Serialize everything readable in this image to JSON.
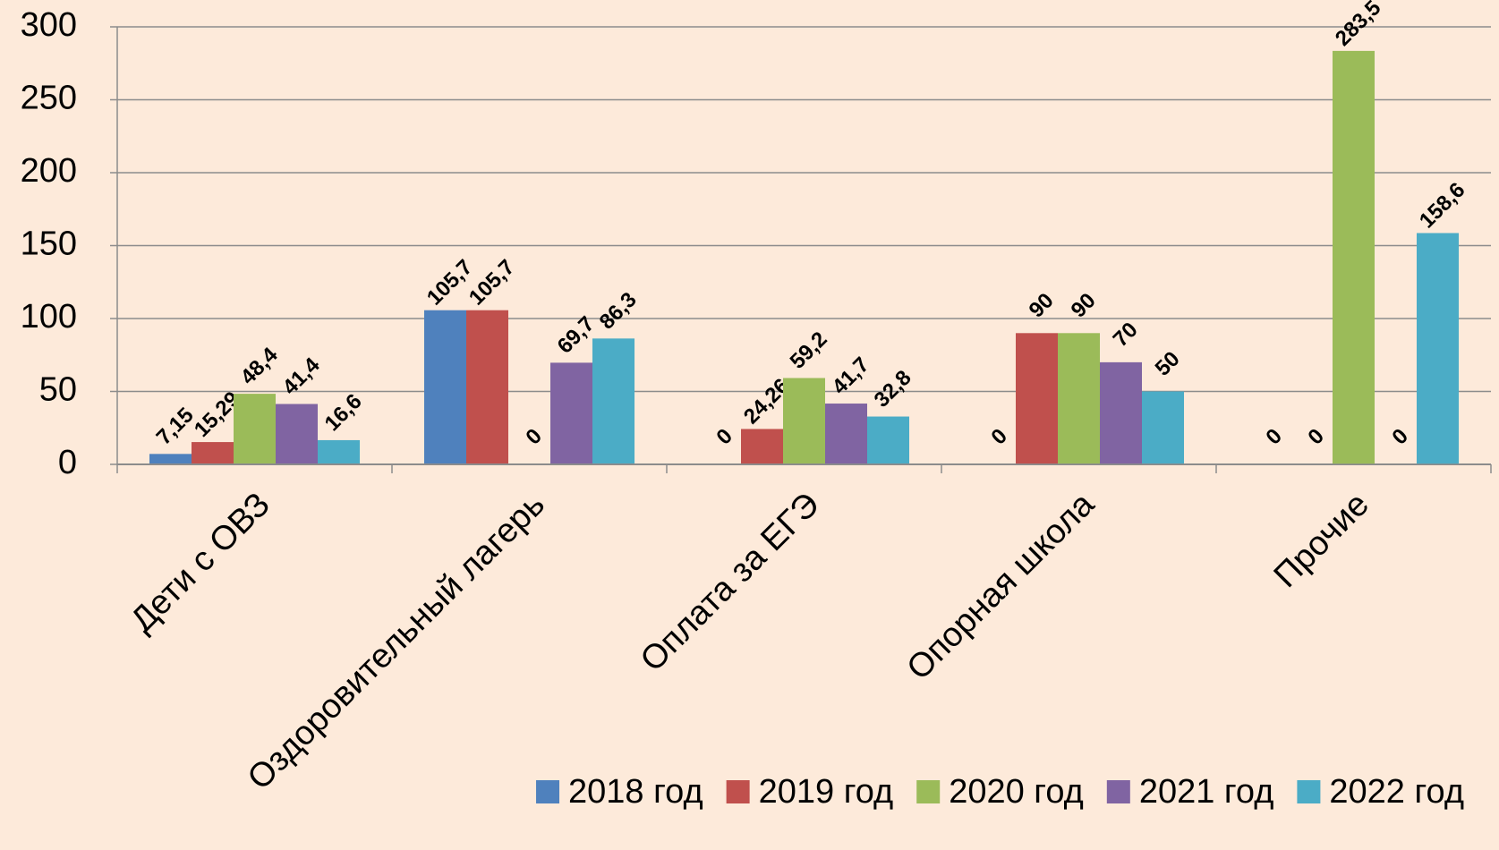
{
  "chart_data": {
    "type": "bar",
    "categories": [
      "Дети с ОВЗ",
      "Оздоровительный лагерь",
      "Оплата за ЕГЭ",
      "Опорная школа",
      "Прочие"
    ],
    "series": [
      {
        "name": "2018 год",
        "color": "#4f81bd",
        "values": [
          7.15,
          105.7,
          0,
          0,
          0
        ],
        "value_labels": [
          "7,15",
          "105,7",
          "0",
          "0",
          "0"
        ]
      },
      {
        "name": "2019 год",
        "color": "#c0504d",
        "values": [
          15.29,
          105.7,
          24.26,
          90,
          0
        ],
        "value_labels": [
          "15,29",
          "105,7",
          "24,26",
          "90",
          "0"
        ]
      },
      {
        "name": "2020 год",
        "color": "#9bbb59",
        "values": [
          48.4,
          0,
          59.2,
          90,
          283.5
        ],
        "value_labels": [
          "48,4",
          "0",
          "59,2",
          "90",
          "283,5"
        ]
      },
      {
        "name": "2021 год",
        "color": "#8064a2",
        "values": [
          41.4,
          69.7,
          41.7,
          70,
          0
        ],
        "value_labels": [
          "41,4",
          "69,7",
          "41,7",
          "70",
          "0"
        ]
      },
      {
        "name": "2022 год",
        "color": "#4bacc6",
        "values": [
          16.6,
          86.3,
          32.8,
          50,
          158.6
        ],
        "value_labels": [
          "16,6",
          "86,3",
          "32,8",
          "50",
          "158,6"
        ]
      }
    ],
    "ylim": [
      0,
      300
    ],
    "yticks": [
      0,
      50,
      100,
      150,
      200,
      250,
      300
    ],
    "grid": true,
    "legend": "bottom-right"
  }
}
